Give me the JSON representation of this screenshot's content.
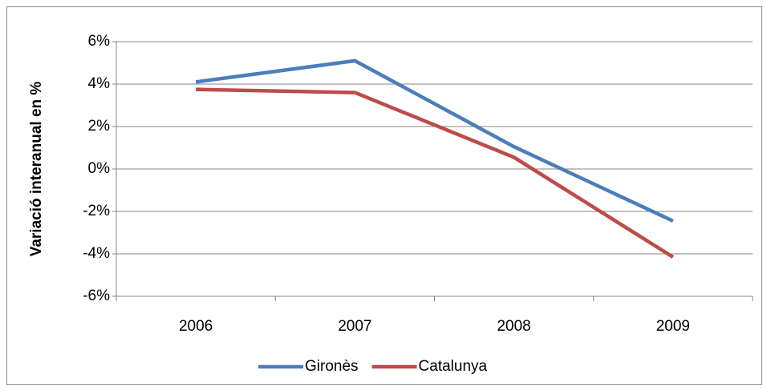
{
  "chart_data": {
    "type": "line",
    "y_label": "Variació interanual en %",
    "categories": [
      "2006",
      "2007",
      "2008",
      "2009"
    ],
    "series": [
      {
        "name": "Gironès",
        "color": "#4a7ebb",
        "values": [
          4.1,
          5.1,
          1.05,
          -2.45
        ]
      },
      {
        "name": "Catalunya",
        "color": "#be4b48",
        "values": [
          3.75,
          3.6,
          0.55,
          -4.15
        ]
      }
    ],
    "ylim": [
      -6,
      6
    ],
    "yticks": [
      {
        "value": -6,
        "label": "-6%"
      },
      {
        "value": -4,
        "label": "-4%"
      },
      {
        "value": -2,
        "label": "-2%"
      },
      {
        "value": 0,
        "label": "0%"
      },
      {
        "value": 2,
        "label": "2%"
      },
      {
        "value": 4,
        "label": "4%"
      },
      {
        "value": 6,
        "label": "6%"
      }
    ],
    "grid": true,
    "legend": "bottom"
  }
}
